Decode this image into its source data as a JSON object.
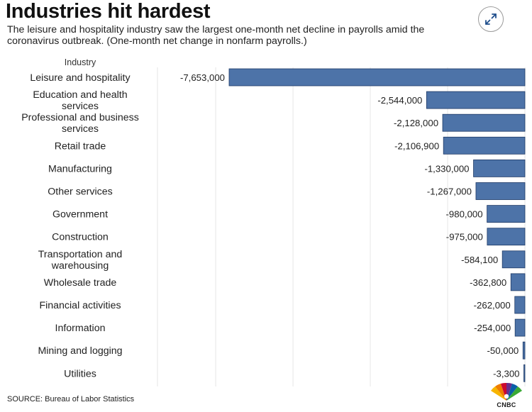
{
  "header": {
    "title": "Industries hit hardest",
    "subtitle": "The leisure and hospitality industry saw the largest one-month net decline in payrolls amid the coronavirus outbreak. (One-month net change in nonfarm payrolls.)"
  },
  "controls": {
    "expand_icon": "expand-arrows-icon"
  },
  "footer": {
    "source": "SOURCE: Bureau of Labor Statistics",
    "logo_text": "CNBC"
  },
  "chart_data": {
    "type": "bar",
    "orientation": "horizontal",
    "category_header": "Industry",
    "categories": [
      [
        "Leisure and hospitality"
      ],
      [
        "Education and health",
        "services"
      ],
      [
        "Professional and business",
        "services"
      ],
      [
        "Retail trade"
      ],
      [
        "Manufacturing"
      ],
      [
        "Other services"
      ],
      [
        "Government"
      ],
      [
        "Construction"
      ],
      [
        "Transportation and",
        "warehousing"
      ],
      [
        "Wholesale trade"
      ],
      [
        "Financial activities"
      ],
      [
        "Information"
      ],
      [
        "Mining and logging"
      ],
      [
        "Utilities"
      ]
    ],
    "values": [
      -7653000,
      -2544000,
      -2128000,
      -2106900,
      -1330000,
      -1267000,
      -980000,
      -975000,
      -584100,
      -362800,
      -262000,
      -254000,
      -50000,
      -3300
    ],
    "value_labels": [
      "-7,653,000",
      "-2,544,000",
      "-2,128,000",
      "-2,106,900",
      "-1,330,000",
      "-1,267,000",
      "-980,000",
      "-975,000",
      "-584,100",
      "-362,800",
      "-262,000",
      "-254,000",
      "-50,000",
      "-3,300"
    ],
    "bar_color": "#4d73a8",
    "grid": true,
    "legend": "none"
  }
}
